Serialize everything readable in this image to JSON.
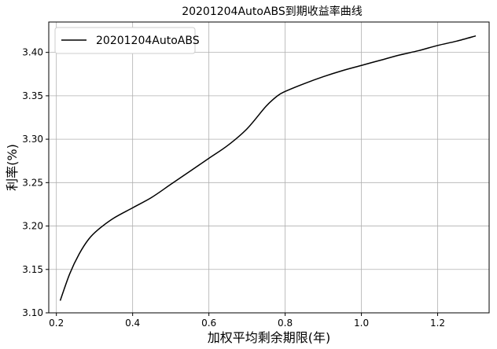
{
  "chart_data": {
    "type": "line",
    "title": "20201204AutoABS到期收益率曲线",
    "xlabel": "加权平均剩余期限(年)",
    "ylabel": "利率(%)",
    "xlim": [
      0.18,
      1.335
    ],
    "ylim": [
      3.1,
      3.435
    ],
    "xticks": [
      0.2,
      0.4,
      0.6,
      0.8,
      1.0,
      1.2
    ],
    "xtick_labels": [
      "0.2",
      "0.4",
      "0.6",
      "0.8",
      "1.0",
      "1.2"
    ],
    "yticks": [
      3.1,
      3.15,
      3.2,
      3.25,
      3.3,
      3.35,
      3.4
    ],
    "ytick_labels": [
      "3.10",
      "3.15",
      "3.20",
      "3.25",
      "3.30",
      "3.35",
      "3.40"
    ],
    "grid": true,
    "legend_position": "top-left",
    "series": [
      {
        "name": "20201204AutoABS",
        "color": "#000000",
        "x": [
          0.21,
          0.235,
          0.26,
          0.285,
          0.31,
          0.35,
          0.4,
          0.45,
          0.5,
          0.55,
          0.6,
          0.65,
          0.7,
          0.75,
          0.78,
          0.8,
          0.85,
          0.9,
          0.95,
          1.0,
          1.05,
          1.1,
          1.15,
          1.2,
          1.25,
          1.3
        ],
        "y": [
          3.114,
          3.145,
          3.168,
          3.185,
          3.196,
          3.209,
          3.221,
          3.233,
          3.248,
          3.263,
          3.278,
          3.293,
          3.312,
          3.338,
          3.35,
          3.355,
          3.364,
          3.372,
          3.379,
          3.385,
          3.391,
          3.397,
          3.402,
          3.408,
          3.413,
          3.419
        ]
      }
    ]
  }
}
